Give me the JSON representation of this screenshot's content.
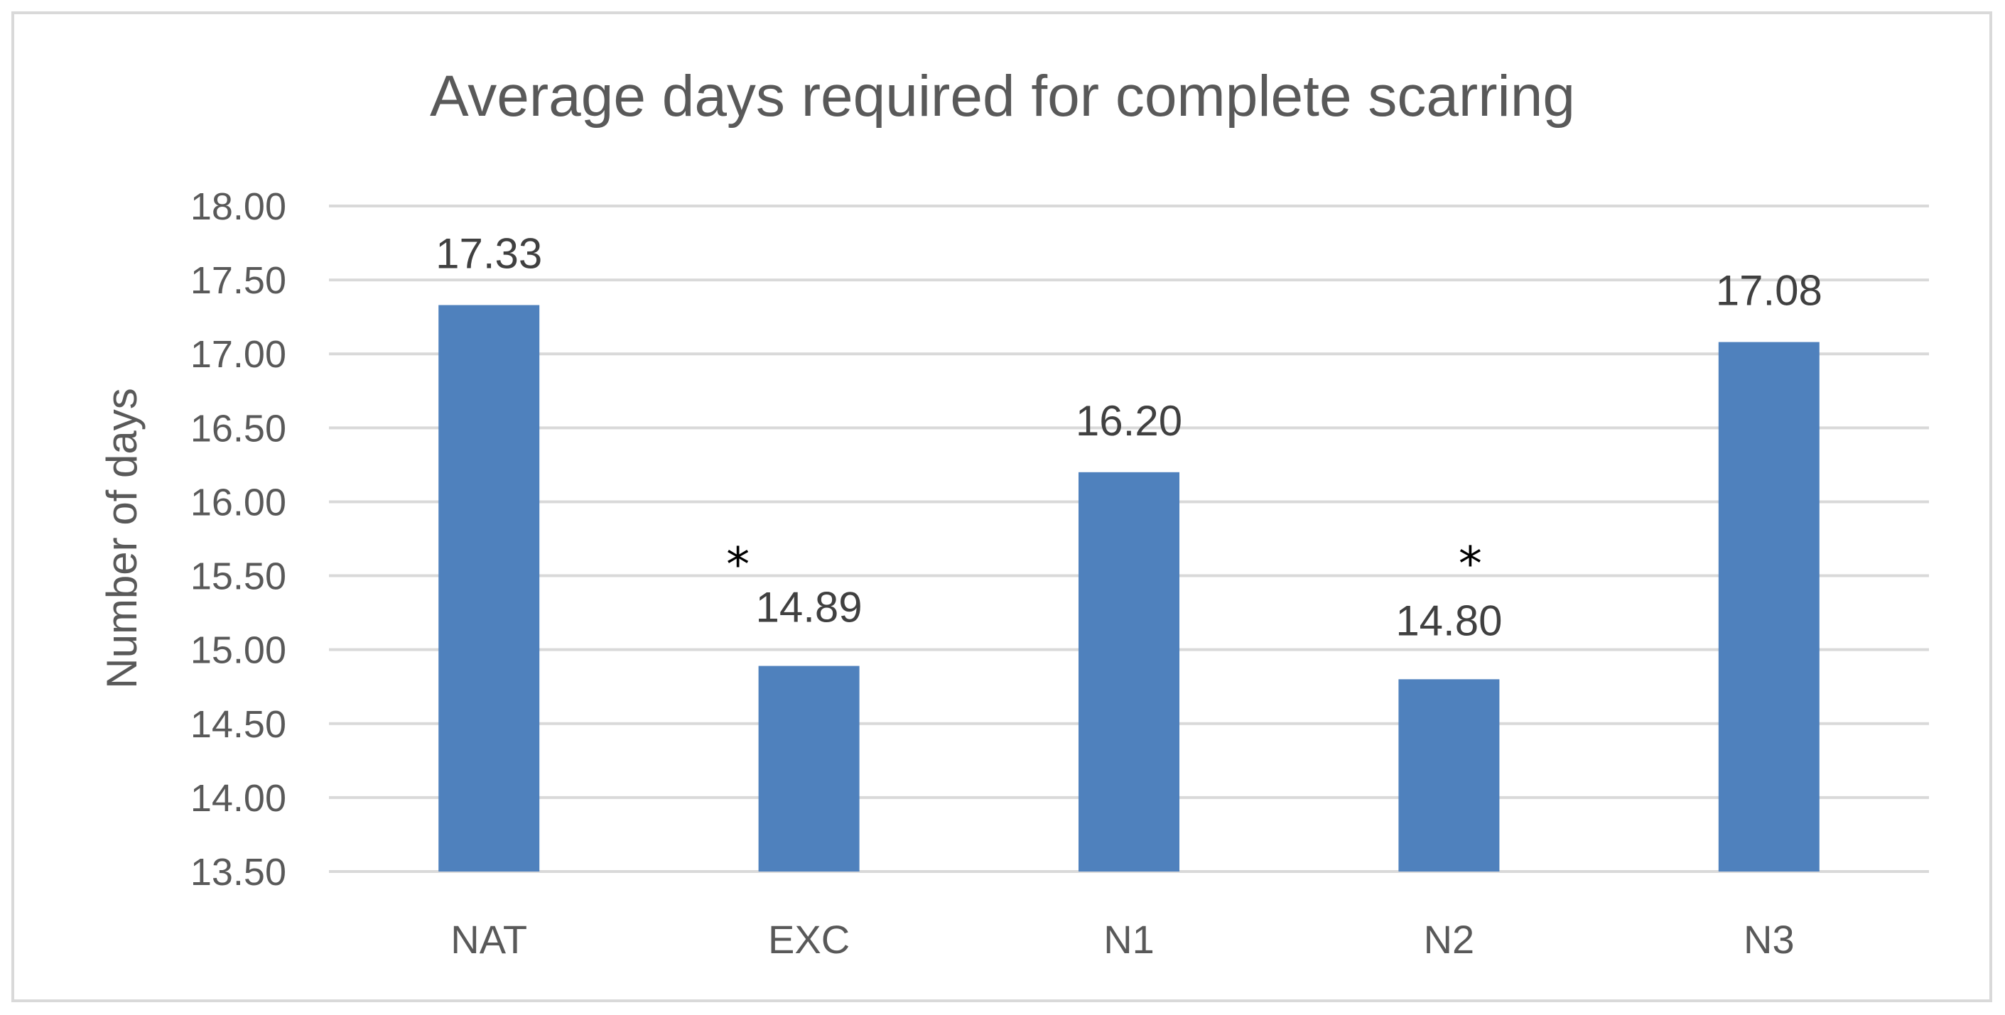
{
  "chart_data": {
    "type": "bar",
    "title": "Average days required for complete scarring",
    "xlabel": "",
    "ylabel": "Number of days",
    "categories": [
      "NAT",
      "EXC",
      "N1",
      "N2",
      "N3"
    ],
    "values": [
      17.33,
      14.89,
      16.2,
      14.8,
      17.08
    ],
    "data_labels": [
      "17.33",
      "14.89",
      "16.20",
      "14.80",
      "17.08"
    ],
    "significance_marks": [
      "",
      "*",
      "",
      "*",
      ""
    ],
    "ylim": [
      13.5,
      18.0
    ],
    "yticks": [
      "13.50",
      "14.00",
      "14.50",
      "15.00",
      "15.50",
      "16.00",
      "16.50",
      "17.00",
      "17.50",
      "18.00"
    ],
    "grid": true,
    "legend": "none",
    "colors": {
      "bar": "#4f81bd",
      "grid": "#d9d9d9",
      "text": "#595959"
    }
  }
}
